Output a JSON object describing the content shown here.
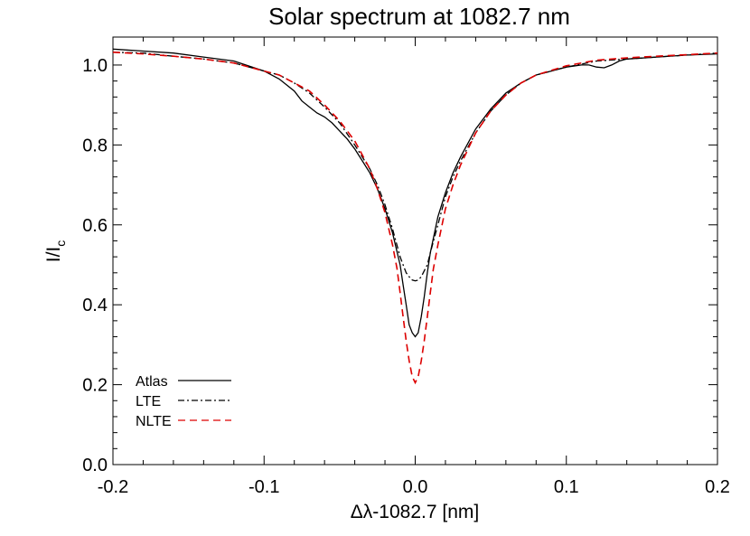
{
  "chart_data": {
    "type": "line",
    "title": "Solar spectrum at 1082.7 nm",
    "xlabel": "Δλ-1082.7 [nm]",
    "ylabel": {
      "main": "I/I",
      "sub": "c"
    },
    "xlim": [
      -0.2,
      0.2
    ],
    "ylim": [
      0.0,
      1.07
    ],
    "xticks": [
      -0.2,
      -0.1,
      0.0,
      0.1,
      0.2
    ],
    "xtick_labels": [
      "-0.2",
      "-0.1",
      "0.0",
      "0.1",
      "0.2"
    ],
    "yticks": [
      0.0,
      0.2,
      0.4,
      0.6,
      0.8,
      1.0
    ],
    "ytick_labels": [
      "0.0",
      "0.2",
      "0.4",
      "0.6",
      "0.8",
      "1.0"
    ],
    "grid": false,
    "legend_position": "bottom-left",
    "series": [
      {
        "name": "Atlas",
        "color": "#000000",
        "style": "solid",
        "x": [
          -0.2,
          -0.18,
          -0.16,
          -0.14,
          -0.12,
          -0.1,
          -0.09,
          -0.08,
          -0.075,
          -0.07,
          -0.065,
          -0.06,
          -0.055,
          -0.05,
          -0.045,
          -0.04,
          -0.035,
          -0.03,
          -0.025,
          -0.02,
          -0.015,
          -0.01,
          -0.008,
          -0.006,
          -0.004,
          -0.002,
          0.0,
          0.002,
          0.004,
          0.006,
          0.008,
          0.01,
          0.015,
          0.02,
          0.025,
          0.03,
          0.04,
          0.05,
          0.06,
          0.07,
          0.08,
          0.09,
          0.1,
          0.11,
          0.115,
          0.12,
          0.125,
          0.13,
          0.135,
          0.14,
          0.16,
          0.18,
          0.2
        ],
        "y": [
          1.04,
          1.035,
          1.03,
          1.02,
          1.01,
          0.985,
          0.965,
          0.935,
          0.91,
          0.895,
          0.88,
          0.87,
          0.855,
          0.835,
          0.815,
          0.79,
          0.76,
          0.73,
          0.69,
          0.64,
          0.58,
          0.5,
          0.45,
          0.4,
          0.35,
          0.33,
          0.32,
          0.33,
          0.37,
          0.42,
          0.48,
          0.53,
          0.62,
          0.68,
          0.73,
          0.77,
          0.84,
          0.89,
          0.93,
          0.955,
          0.975,
          0.985,
          0.995,
          1.0,
          1.0,
          0.995,
          0.993,
          1.0,
          1.01,
          1.015,
          1.02,
          1.025,
          1.028
        ]
      },
      {
        "name": "LTE",
        "color": "#000000",
        "style": "dashdot",
        "x": [
          -0.2,
          -0.18,
          -0.16,
          -0.14,
          -0.12,
          -0.1,
          -0.09,
          -0.08,
          -0.07,
          -0.06,
          -0.05,
          -0.04,
          -0.03,
          -0.025,
          -0.02,
          -0.015,
          -0.01,
          -0.008,
          -0.006,
          -0.004,
          -0.002,
          0.0,
          0.002,
          0.004,
          0.006,
          0.008,
          0.01,
          0.015,
          0.02,
          0.025,
          0.03,
          0.04,
          0.05,
          0.06,
          0.07,
          0.08,
          0.1,
          0.12,
          0.14,
          0.16,
          0.18,
          0.2
        ],
        "y": [
          1.032,
          1.03,
          1.022,
          1.015,
          1.005,
          0.985,
          0.975,
          0.955,
          0.93,
          0.895,
          0.855,
          0.8,
          0.74,
          0.7,
          0.65,
          0.59,
          0.52,
          0.5,
          0.48,
          0.47,
          0.462,
          0.46,
          0.462,
          0.47,
          0.485,
          0.5,
          0.53,
          0.6,
          0.67,
          0.72,
          0.76,
          0.83,
          0.885,
          0.925,
          0.955,
          0.975,
          0.995,
          1.01,
          1.015,
          1.02,
          1.025,
          1.03
        ]
      },
      {
        "name": "NLTE",
        "color": "#dd0000",
        "style": "dashed",
        "x": [
          -0.2,
          -0.18,
          -0.16,
          -0.14,
          -0.12,
          -0.1,
          -0.09,
          -0.08,
          -0.07,
          -0.06,
          -0.05,
          -0.04,
          -0.03,
          -0.025,
          -0.02,
          -0.015,
          -0.012,
          -0.01,
          -0.008,
          -0.006,
          -0.004,
          -0.002,
          0.0,
          0.002,
          0.004,
          0.006,
          0.008,
          0.01,
          0.012,
          0.015,
          0.02,
          0.025,
          0.03,
          0.04,
          0.05,
          0.06,
          0.07,
          0.08,
          0.1,
          0.12,
          0.14,
          0.16,
          0.18,
          0.2
        ],
        "y": [
          1.032,
          1.028,
          1.022,
          1.015,
          1.005,
          0.985,
          0.975,
          0.955,
          0.935,
          0.9,
          0.86,
          0.81,
          0.74,
          0.69,
          0.63,
          0.55,
          0.49,
          0.43,
          0.37,
          0.31,
          0.26,
          0.22,
          0.205,
          0.22,
          0.26,
          0.31,
          0.37,
          0.43,
          0.49,
          0.55,
          0.64,
          0.7,
          0.75,
          0.83,
          0.885,
          0.925,
          0.955,
          0.975,
          0.998,
          1.012,
          1.018,
          1.022,
          1.026,
          1.03
        ]
      }
    ]
  }
}
